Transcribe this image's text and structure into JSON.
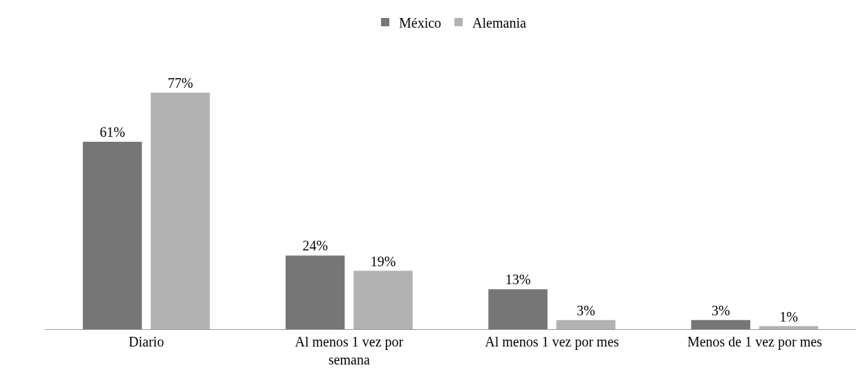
{
  "chart_data": {
    "type": "bar",
    "categories": [
      "Diario",
      "Al menos 1 vez por semana",
      "Al menos 1 vez por mes",
      "Menos de 1 vez por mes"
    ],
    "series": [
      {
        "name": "México",
        "color": "#767676",
        "values": [
          61,
          24,
          13,
          3
        ],
        "value_labels": [
          "61%",
          "24%",
          "13%",
          "3%"
        ]
      },
      {
        "name": "Alemania",
        "color": "#b2b2b2",
        "values": [
          77,
          19,
          3,
          1
        ],
        "value_labels": [
          "77%",
          "19%",
          "3%",
          "1%"
        ]
      }
    ],
    "legend": "top"
  }
}
